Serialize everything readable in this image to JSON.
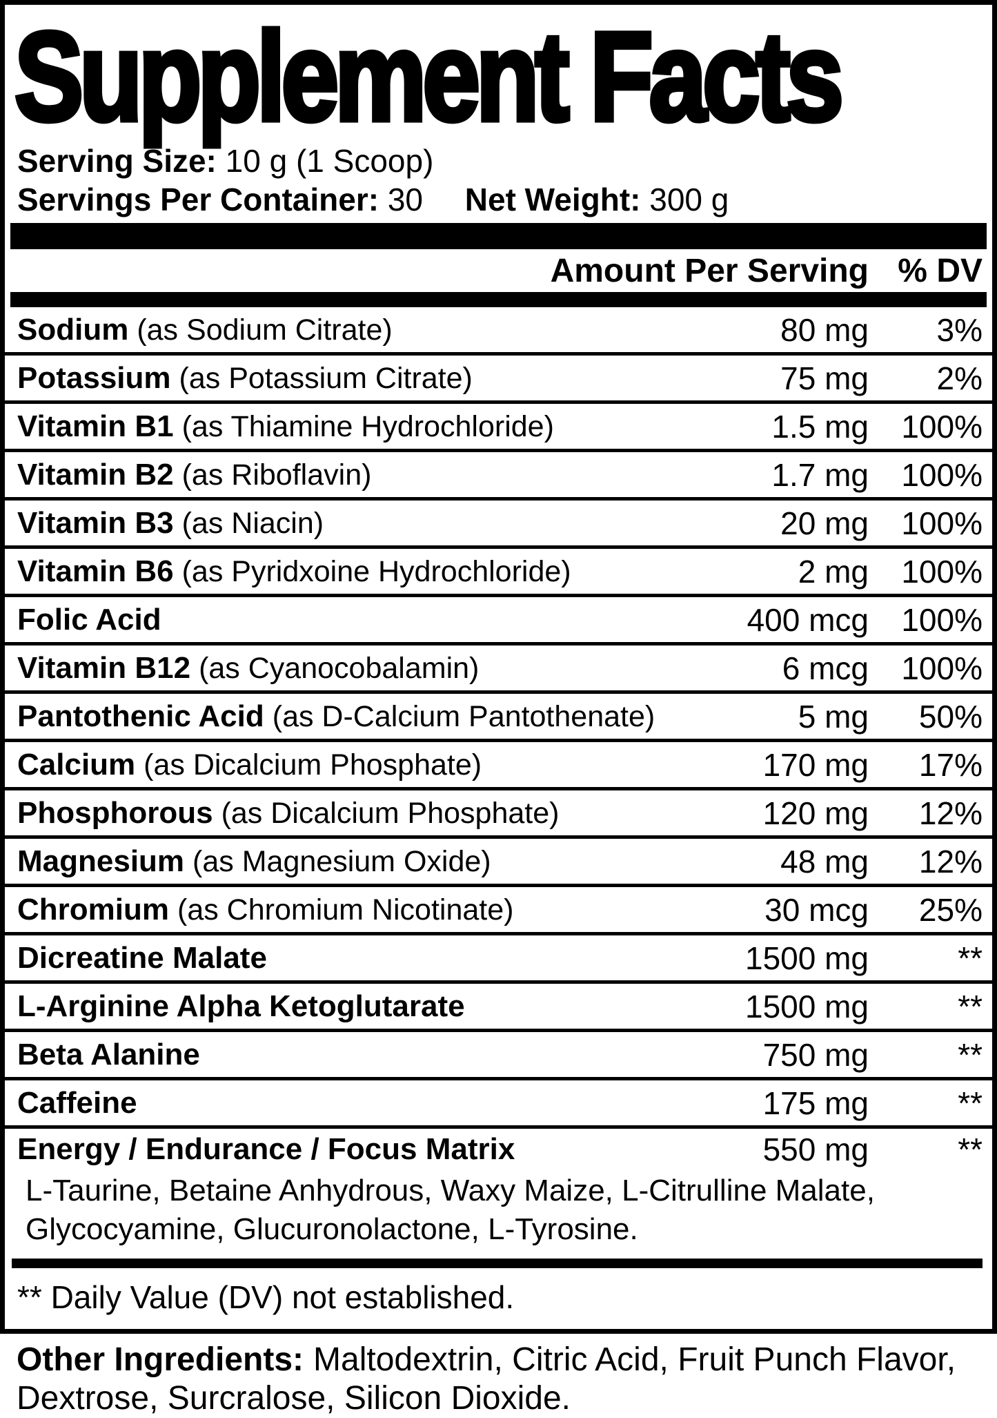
{
  "title": "Supplement Facts",
  "serving": {
    "serving_size_label": "Serving Size:",
    "serving_size_value": "10 g (1 Scoop)",
    "servings_label": "Servings Per Container:",
    "servings_value": "30",
    "net_weight_label": "Net Weight:",
    "net_weight_value": "300 g"
  },
  "table": {
    "amount_header": "Amount Per Serving",
    "dv_header": "% DV",
    "rows": [
      {
        "name": "Sodium",
        "detail": "(as Sodium Citrate)",
        "amount": "80 mg",
        "dv": "3%"
      },
      {
        "name": "Potassium",
        "detail": "(as Potassium Citrate)",
        "amount": "75 mg",
        "dv": "2%"
      },
      {
        "name": "Vitamin B1",
        "detail": "(as Thiamine Hydrochloride)",
        "amount": "1.5 mg",
        "dv": "100%"
      },
      {
        "name": "Vitamin B2",
        "detail": "(as Riboflavin)",
        "amount": "1.7 mg",
        "dv": "100%"
      },
      {
        "name": "Vitamin B3",
        "detail": "(as Niacin)",
        "amount": "20 mg",
        "dv": "100%"
      },
      {
        "name": "Vitamin B6",
        "detail": "(as Pyridxoine Hydrochloride)",
        "amount": "2 mg",
        "dv": "100%"
      },
      {
        "name": "Folic Acid",
        "detail": "",
        "amount": "400 mcg",
        "dv": "100%"
      },
      {
        "name": "Vitamin B12",
        "detail": "(as Cyanocobalamin)",
        "amount": "6 mcg",
        "dv": "100%"
      },
      {
        "name": "Pantothenic Acid",
        "detail": "(as D-Calcium Pantothenate)",
        "amount": "5 mg",
        "dv": "50%"
      },
      {
        "name": "Calcium",
        "detail": "(as Dicalcium Phosphate)",
        "amount": "170 mg",
        "dv": "17%"
      },
      {
        "name": "Phosphorous",
        "detail": "(as Dicalcium Phosphate)",
        "amount": "120 mg",
        "dv": "12%"
      },
      {
        "name": "Magnesium",
        "detail": "(as Magnesium Oxide)",
        "amount": "48 mg",
        "dv": "12%"
      },
      {
        "name": "Chromium",
        "detail": "(as Chromium Nicotinate)",
        "amount": "30 mcg",
        "dv": "25%"
      },
      {
        "name": "Dicreatine Malate",
        "detail": "",
        "amount": "1500 mg",
        "dv": "**"
      },
      {
        "name": "L-Arginine Alpha Ketoglutarate",
        "detail": "",
        "amount": "1500 mg",
        "dv": "**"
      },
      {
        "name": "Beta Alanine",
        "detail": "",
        "amount": "750 mg",
        "dv": "**"
      },
      {
        "name": "Caffeine",
        "detail": "",
        "amount": "175 mg",
        "dv": "**"
      },
      {
        "name": "Energy / Endurance / Focus Matrix",
        "detail": "",
        "amount": "550 mg",
        "dv": "**"
      }
    ],
    "matrix_ingredients": "L-Taurine, Betaine Anhydrous, Waxy Maize, L-Citrulline Malate, Glycocyamine, Glucuronolactone, L-Tyrosine.",
    "footnote": "** Daily Value (DV) not established."
  },
  "other_ingredients": {
    "label": "Other Ingredients:",
    "value": "Maltodextrin, Citric Acid, Fruit Punch Flavor, Dextrose, Surcralose, Silicon Dioxide."
  },
  "colors": {
    "ink": "#000000",
    "paper": "#ffffff"
  }
}
